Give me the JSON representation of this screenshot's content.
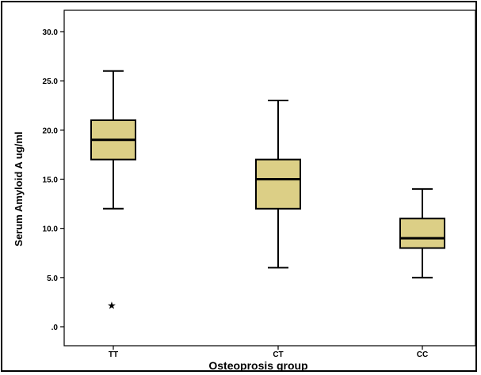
{
  "chart_data": {
    "type": "boxplot",
    "title": "",
    "xlabel": "Osteoprosis group",
    "ylabel": "Serum Amyloid A ug/ml",
    "ylim": [
      0,
      30
    ],
    "yticks": [
      {
        "value": 0,
        "label": ".0"
      },
      {
        "value": 5,
        "label": "5.0"
      },
      {
        "value": 10,
        "label": "10.0"
      },
      {
        "value": 15,
        "label": "15.0"
      },
      {
        "value": 20,
        "label": "20.0"
      },
      {
        "value": 25,
        "label": "25.0"
      },
      {
        "value": 30,
        "label": "30.0"
      }
    ],
    "categories": [
      "TT",
      "CT",
      "CC"
    ],
    "boxes": [
      {
        "category": "TT",
        "whisker_low": 12,
        "q1": 17,
        "median": 19,
        "q3": 21,
        "whisker_high": 26,
        "outliers": [
          2.2
        ]
      },
      {
        "category": "CT",
        "whisker_low": 6,
        "q1": 12,
        "median": 15,
        "q3": 17,
        "whisker_high": 23,
        "outliers": []
      },
      {
        "category": "CC",
        "whisker_low": 5,
        "q1": 8,
        "median": 9,
        "q3": 11,
        "whisker_high": 14,
        "outliers": []
      }
    ],
    "outlier_marker": "★",
    "box_color": "#dccf86",
    "grid": false,
    "legend": "none"
  }
}
